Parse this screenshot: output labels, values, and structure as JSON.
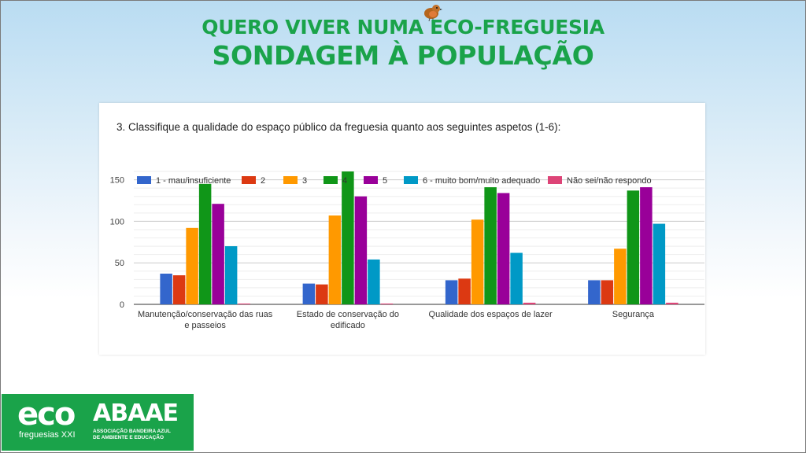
{
  "slide": {
    "title_line1": "QUERO VIVER NUMA ECO-FREGUESIA",
    "title_line2": "SONDAGEM À POPULAÇÃO",
    "question": "3.   Classifique a qualidade do espaço público da freguesia quanto aos seguintes aspetos (1-6):"
  },
  "logo": {
    "eco_text": "eco",
    "eco_subtitle": "freguesias XXI",
    "abaae_text": "ABAAE",
    "abaae_subtitle_line1": "ASSOCIAÇÃO BANDEIRA AZUL",
    "abaae_subtitle_line2": "DE AMBIENTE E EDUCAÇÃO"
  },
  "colors": {
    "title_green": "#1aa34a",
    "logo_green": "#1aa34a"
  },
  "chart_data": {
    "type": "bar",
    "title": "",
    "xlabel": "",
    "ylabel": "",
    "ylim": [
      0,
      160
    ],
    "yticks": [
      0,
      50,
      100,
      150
    ],
    "grid": true,
    "legend_position": "top",
    "categories": [
      [
        "Manutenção/conservação das ruas",
        "e passeios"
      ],
      [
        "Estado de conservação do",
        "edificado"
      ],
      [
        "Qualidade dos espaços de lazer"
      ],
      [
        "Segurança"
      ]
    ],
    "series": [
      {
        "name": "1 - mau/insuficiente",
        "color": "#3366cc",
        "values": [
          37,
          25,
          29,
          29
        ]
      },
      {
        "name": "2",
        "color": "#dc3912",
        "values": [
          35,
          24,
          31,
          29
        ]
      },
      {
        "name": "3",
        "color": "#ff9900",
        "values": [
          92,
          107,
          102,
          67
        ]
      },
      {
        "name": "4",
        "color": "#109618",
        "values": [
          145,
          160,
          141,
          137
        ]
      },
      {
        "name": "5",
        "color": "#990099",
        "values": [
          121,
          130,
          134,
          141
        ]
      },
      {
        "name": "6 - muito bom/muito adequado",
        "color": "#0099c6",
        "values": [
          70,
          54,
          62,
          97
        ]
      },
      {
        "name": "Não sei/não respondo",
        "color": "#dd4477",
        "values": [
          1,
          1,
          2,
          2
        ]
      }
    ]
  }
}
